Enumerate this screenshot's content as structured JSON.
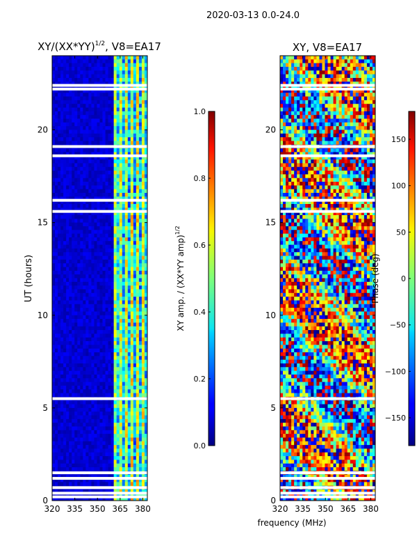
{
  "figure": {
    "suptitle": "2020-03-13 0.0-24.0",
    "xlabel": "frequency (MHz)",
    "ylabel": "UT (hours)"
  },
  "chart_data": [
    {
      "type": "heatmap",
      "title": "XY/(XX*YY)¹ᐟ², V8=EA17",
      "title_base": "XY/(XX*YY)",
      "title_sup": "1/2",
      "title_rest": ", V8=EA17",
      "xlabel": "frequency (MHz)",
      "ylabel": "UT (hours)",
      "xlim": [
        320,
        383
      ],
      "ylim": [
        0,
        24
      ],
      "xticks": [
        320,
        335,
        350,
        365,
        380
      ],
      "yticks": [
        0,
        5,
        10,
        15,
        20
      ],
      "colorbar": {
        "label": "XY amp. / (XX*YY amp)",
        "label_sup": "1/2",
        "range": [
          0.0,
          1.0
        ],
        "ticks": [
          "0.0",
          "0.2",
          "0.4",
          "0.6",
          "0.8",
          "1.0"
        ],
        "colormap": "jet"
      },
      "description_values": {
        "low_band_level": 0.08,
        "high_band_start_MHz": 360,
        "high_band_level": 0.45,
        "gap_hours": [
          0.2,
          0.4,
          0.7,
          1.2,
          1.5,
          5.5,
          15.6,
          16.2,
          18.6,
          19.1,
          22.2,
          22.4
        ]
      }
    },
    {
      "type": "heatmap",
      "title": "XY, V8=EA17",
      "xlabel": "frequency (MHz)",
      "ylabel": "",
      "xlim": [
        320,
        383
      ],
      "ylim": [
        0,
        24
      ],
      "xticks": [
        320,
        335,
        350,
        365,
        380
      ],
      "yticks": [
        0,
        5,
        10,
        15,
        20
      ],
      "colorbar": {
        "label": "Phase (deg)",
        "range": [
          -180,
          180
        ],
        "ticks": [
          "−150",
          "−100",
          "−50",
          "0",
          "50",
          "100",
          "150"
        ],
        "colormap": "jet"
      },
      "description_values": {
        "dominant_phase_deg": 150,
        "gap_hours": [
          0.2,
          0.4,
          0.7,
          1.2,
          1.5,
          5.5,
          15.6,
          16.2,
          18.6,
          19.1,
          22.2,
          22.4
        ]
      }
    }
  ]
}
